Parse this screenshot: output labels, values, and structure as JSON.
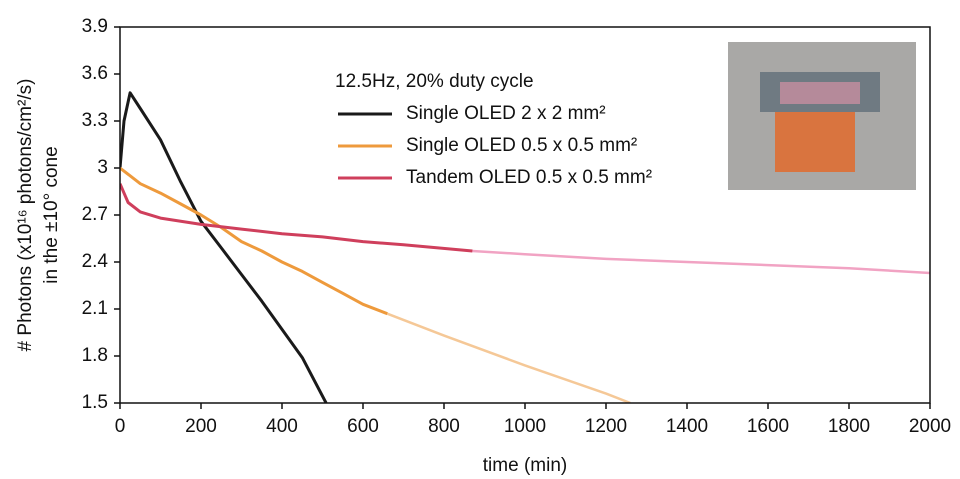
{
  "chart_data": {
    "type": "line",
    "xlabel": "time (min)",
    "ylabel": [
      "# Photons (x10¹⁶ photons/cm²/s)",
      "in the ±10° cone"
    ],
    "legend_title": "12.5Hz, 20% duty cycle",
    "xlim": [
      0,
      2000
    ],
    "ylim": [
      1.5,
      3.9
    ],
    "xticks": [
      0,
      200,
      400,
      600,
      800,
      1000,
      1200,
      1400,
      1600,
      1800,
      2000
    ],
    "yticks": [
      1.5,
      1.8,
      2.1,
      2.4,
      2.7,
      3,
      3.3,
      3.6,
      3.9
    ],
    "grid": false,
    "series": [
      {
        "name": "Single OLED 2 x 2 mm²",
        "color": "#1a1a1a",
        "x": [
          0,
          10,
          25,
          50,
          100,
          150,
          200,
          250,
          300,
          350,
          400,
          450,
          509
        ],
        "values": [
          3.0,
          3.3,
          3.48,
          3.38,
          3.18,
          2.91,
          2.66,
          2.49,
          2.32,
          2.15,
          1.97,
          1.79,
          1.5
        ]
      },
      {
        "name": "Single OLED 0.5 x 0.5 mm²",
        "color": "#ee9a3c",
        "x": [
          0,
          50,
          100,
          150,
          200,
          250,
          300,
          350,
          400,
          450,
          500,
          550,
          600,
          660
        ],
        "values": [
          3.0,
          2.9,
          2.84,
          2.77,
          2.7,
          2.62,
          2.53,
          2.47,
          2.4,
          2.34,
          2.27,
          2.2,
          2.13,
          2.07
        ]
      },
      {
        "name": "Tandem OLED 0.5 x 0.5 mm²",
        "color": "#cf3f5c",
        "x": [
          0,
          20,
          50,
          100,
          200,
          300,
          400,
          500,
          600,
          700,
          870
        ],
        "values": [
          2.9,
          2.78,
          2.72,
          2.68,
          2.64,
          2.61,
          2.58,
          2.56,
          2.53,
          2.51,
          2.47
        ]
      },
      {
        "color": "#f5c897",
        "x": [
          660,
          800,
          1000,
          1200,
          1260
        ],
        "values": [
          2.07,
          1.93,
          1.74,
          1.56,
          1.5
        ]
      },
      {
        "color": "#f1a3c3",
        "x": [
          870,
          1000,
          1200,
          1400,
          1600,
          1800,
          2000
        ],
        "values": [
          2.47,
          2.45,
          2.42,
          2.4,
          2.38,
          2.36,
          2.33
        ]
      }
    ]
  }
}
